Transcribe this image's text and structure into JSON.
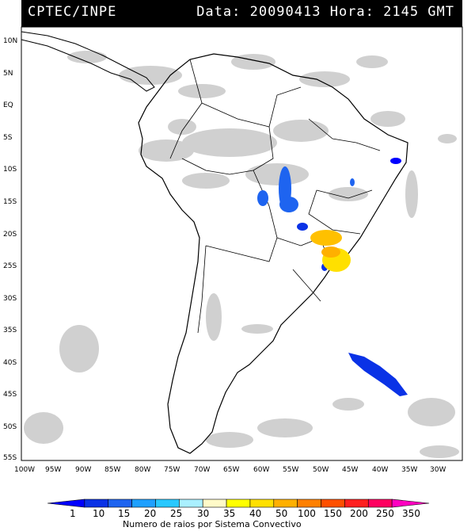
{
  "header": {
    "left_title": "CPTEC/INPE",
    "right_title": "Data: 20090413 Hora: 2145 GMT",
    "background": "#000000",
    "text_color": "#ffffff"
  },
  "map": {
    "lat_labels": [
      "10N",
      "5N",
      "EQ",
      "5S",
      "10S",
      "15S",
      "20S",
      "25S",
      "30S",
      "35S",
      "40S",
      "45S",
      "50S",
      "55S"
    ],
    "lon_labels": [
      "100W",
      "95W",
      "90W",
      "85W",
      "80W",
      "75W",
      "70W",
      "65W",
      "60W",
      "55W",
      "50W",
      "45W",
      "40W",
      "35W",
      "30W"
    ],
    "cloud_color": "#c8c8c8",
    "land_outline_color": "#000000"
  },
  "colorbar": {
    "labels": [
      "1",
      "10",
      "15",
      "20",
      "25",
      "30",
      "35",
      "40",
      "50",
      "100",
      "150",
      "200",
      "250",
      "350"
    ],
    "colors": [
      "#0000ff",
      "#0a32e6",
      "#1e64f0",
      "#1ea0ff",
      "#28c8ff",
      "#aaf0ff",
      "#fffac8",
      "#ffff00",
      "#ffe000",
      "#ffb000",
      "#ff8000",
      "#ff5000",
      "#ff2020",
      "#ff0060",
      "#ff00c0"
    ],
    "title": "Numero de raios por Sistema Convectivo"
  }
}
